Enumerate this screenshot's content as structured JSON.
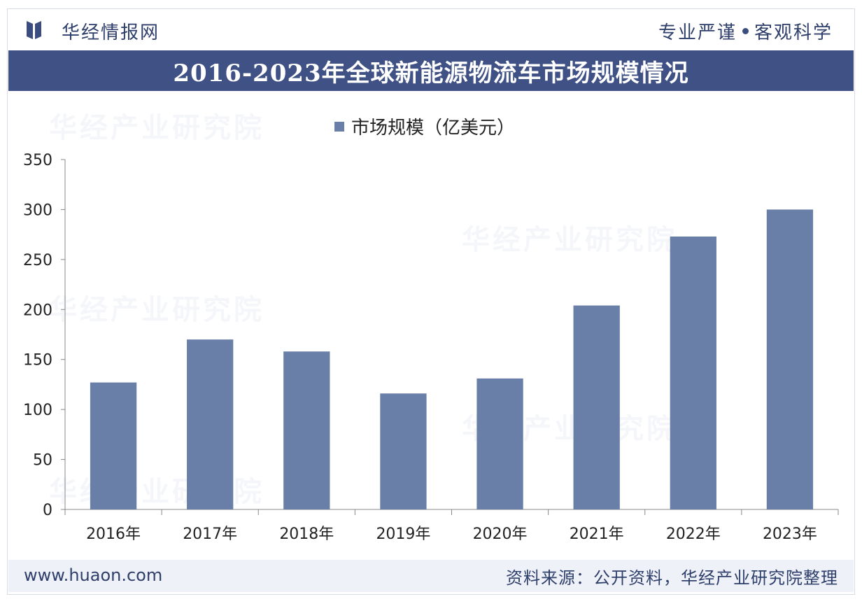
{
  "header": {
    "brand": "华经情报网",
    "slogan_left": "专业严谨",
    "slogan_right": "客观科学"
  },
  "title": "2016-2023年全球新能源物流车市场规模情况",
  "watermark": "华经产业研究院",
  "footer": {
    "url": "www.huaon.com",
    "source": "资料来源：公开资料，华经产业研究院整理"
  },
  "colors": {
    "bar": "#6a7fa8",
    "title_band": "#3f5185",
    "text_dark": "#2f3f6b"
  },
  "chart_data": {
    "type": "bar",
    "categories": [
      "2016年",
      "2017年",
      "2018年",
      "2019年",
      "2020年",
      "2021年",
      "2022年",
      "2023年"
    ],
    "series": [
      {
        "name": "市场规模（亿美元）",
        "values": [
          127,
          170,
          158,
          116,
          131,
          204,
          273,
          300
        ]
      }
    ],
    "ylim": [
      0,
      350
    ],
    "yticks": [
      0,
      50,
      100,
      150,
      200,
      250,
      300,
      350
    ],
    "grid": false,
    "legend": "top-center"
  }
}
